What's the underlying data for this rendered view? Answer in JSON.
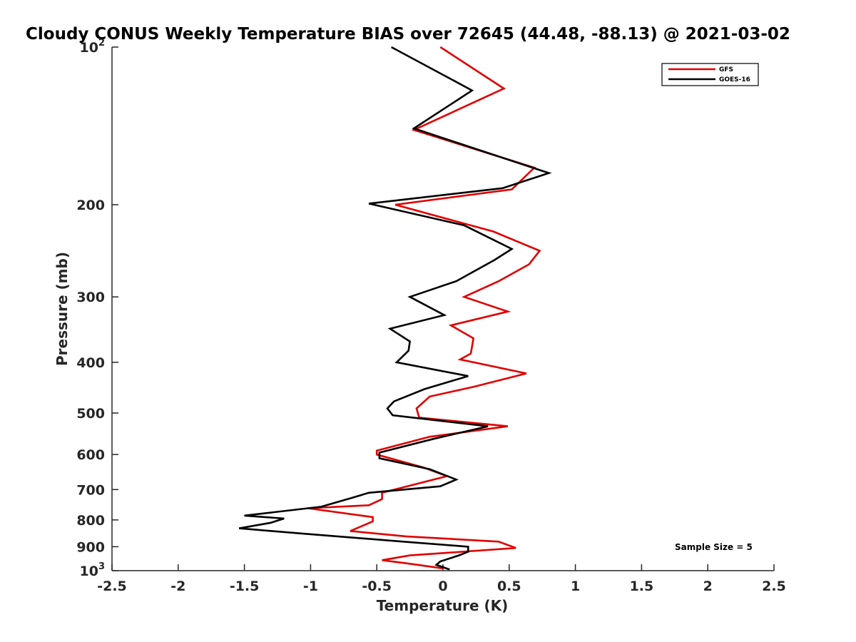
{
  "chart_data": {
    "type": "line",
    "title": "Cloudy CONUS Weekly Temperature BIAS over 72645 (44.48, -88.13) @ 2021-03-02",
    "xlabel": "Temperature (K)",
    "ylabel": "Pressure (mb)",
    "xlim": [
      -2.5,
      2.5
    ],
    "ylim": [
      100,
      1000
    ],
    "y_scale": "log",
    "y_reversed": true,
    "grid": false,
    "legend_position": "top-right",
    "x_ticks": [
      -2.5,
      -2,
      -1.5,
      -1,
      -0.5,
      0,
      0.5,
      1,
      1.5,
      2,
      2.5
    ],
    "x_tick_labels": [
      "-2.5",
      "-2",
      "-1.5",
      "-1",
      "-0.5",
      "0",
      "0.5",
      "1",
      "1.5",
      "2",
      "2.5"
    ],
    "y_ticks": [
      {
        "value": 100,
        "base": "10",
        "exp": "2"
      },
      {
        "value": 200,
        "label": "200"
      },
      {
        "value": 300,
        "label": "300"
      },
      {
        "value": 400,
        "label": "400"
      },
      {
        "value": 500,
        "label": "500"
      },
      {
        "value": 600,
        "label": "600"
      },
      {
        "value": 700,
        "label": "700"
      },
      {
        "value": 800,
        "label": "800"
      },
      {
        "value": 900,
        "label": "900"
      },
      {
        "value": 1000,
        "base": "10",
        "exp": "3"
      }
    ],
    "series": [
      {
        "name": "GFS",
        "color": "#e00000",
        "points": [
          [
            -0.02,
            100
          ],
          [
            0.46,
            120
          ],
          [
            -0.22,
            144
          ],
          [
            0.69,
            170
          ],
          [
            0.52,
            187
          ],
          [
            -0.36,
            200
          ],
          [
            0.38,
            225
          ],
          [
            0.73,
            245
          ],
          [
            0.65,
            260
          ],
          [
            0.42,
            280
          ],
          [
            0.16,
            300
          ],
          [
            0.49,
            320
          ],
          [
            0.06,
            340
          ],
          [
            0.23,
            360
          ],
          [
            0.21,
            385
          ],
          [
            0.13,
            395
          ],
          [
            0.63,
            420
          ],
          [
            0.24,
            445
          ],
          [
            -0.1,
            465
          ],
          [
            -0.2,
            490
          ],
          [
            -0.18,
            510
          ],
          [
            0.49,
            530
          ],
          [
            -0.1,
            555
          ],
          [
            -0.5,
            590
          ],
          [
            -0.5,
            600
          ],
          [
            -0.15,
            635
          ],
          [
            0.03,
            660
          ],
          [
            -0.46,
            710
          ],
          [
            -0.46,
            730
          ],
          [
            -0.56,
            750
          ],
          [
            -1.02,
            760
          ],
          [
            -0.53,
            790
          ],
          [
            -0.53,
            805
          ],
          [
            -0.7,
            840
          ],
          [
            -0.28,
            860
          ],
          [
            0.42,
            880
          ],
          [
            0.55,
            905
          ],
          [
            -0.25,
            935
          ],
          [
            -0.46,
            955
          ],
          [
            -0.25,
            970
          ],
          [
            0.0,
            990
          ]
        ]
      },
      {
        "name": "GOES-16",
        "color": "#000000",
        "points": [
          [
            -0.39,
            100
          ],
          [
            0.22,
            121
          ],
          [
            -0.22,
            143
          ],
          [
            0.8,
            174
          ],
          [
            0.45,
            186
          ],
          [
            -0.56,
            199
          ],
          [
            0.16,
            219
          ],
          [
            0.52,
            243
          ],
          [
            0.39,
            255
          ],
          [
            0.1,
            280
          ],
          [
            -0.25,
            300
          ],
          [
            0.01,
            325
          ],
          [
            -0.4,
            345
          ],
          [
            -0.25,
            365
          ],
          [
            -0.26,
            380
          ],
          [
            -0.35,
            400
          ],
          [
            0.19,
            425
          ],
          [
            -0.14,
            450
          ],
          [
            -0.37,
            475
          ],
          [
            -0.42,
            490
          ],
          [
            -0.38,
            505
          ],
          [
            0.34,
            530
          ],
          [
            -0.07,
            560
          ],
          [
            -0.48,
            595
          ],
          [
            -0.48,
            610
          ],
          [
            -0.1,
            640
          ],
          [
            0.1,
            670
          ],
          [
            -0.02,
            690
          ],
          [
            -0.56,
            710
          ],
          [
            -0.68,
            725
          ],
          [
            -0.92,
            755
          ],
          [
            -1.5,
            785
          ],
          [
            -1.2,
            795
          ],
          [
            -1.3,
            810
          ],
          [
            -1.54,
            830
          ],
          [
            -1.05,
            850
          ],
          [
            -0.3,
            880
          ],
          [
            0.19,
            900
          ],
          [
            0.19,
            920
          ],
          [
            0.12,
            935
          ],
          [
            -0.02,
            960
          ],
          [
            -0.05,
            975
          ],
          [
            0.05,
            995
          ]
        ]
      }
    ],
    "annotation": "Sample Size = 5"
  }
}
